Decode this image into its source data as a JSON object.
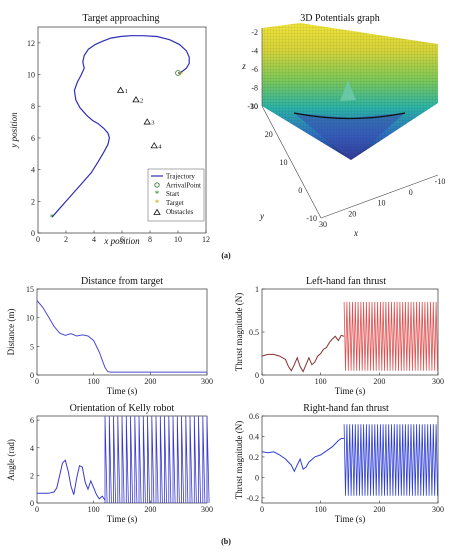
{
  "colors": {
    "trajectory": "#2e2eb8",
    "left_thrust": "#e05050",
    "left_thrust_early": "#8b3030",
    "right_thrust": "#2e3ed6",
    "distance": "#4a4ad8",
    "orientation": "#3a3ad0"
  },
  "panel_labels": {
    "a": "(a)",
    "b": "(b)"
  },
  "chart_data": [
    {
      "id": "target-approaching",
      "type": "line",
      "title": "Target approaching",
      "xlabel": "x position",
      "ylabel": "y position",
      "xlim": [
        0,
        12
      ],
      "ylim": [
        0,
        13
      ],
      "xticks": [
        0,
        2,
        4,
        6,
        8,
        10,
        12
      ],
      "yticks": [
        0,
        2,
        4,
        6,
        8,
        10,
        12
      ],
      "series": [
        {
          "name": "Trajectory",
          "x": [
            1.0,
            1.5,
            2.2,
            3.0,
            3.8,
            4.3,
            4.7,
            5.0,
            5.1,
            5.0,
            4.7,
            4.3,
            3.9,
            3.5,
            3.0,
            2.7,
            2.6,
            2.8,
            3.1,
            3.3,
            3.2,
            3.3,
            3.6,
            4.1,
            4.6,
            5.2,
            5.9,
            6.6,
            7.5,
            8.5,
            9.4,
            10.1,
            10.6,
            10.8,
            10.8,
            10.6,
            10.3,
            10.1,
            10.0,
            10.1,
            10.2
          ],
          "y": [
            1.0,
            1.5,
            2.2,
            3.0,
            3.8,
            4.5,
            5.1,
            5.6,
            6.0,
            6.3,
            6.6,
            6.9,
            7.1,
            7.4,
            7.9,
            8.4,
            9.0,
            9.5,
            10.0,
            10.4,
            10.8,
            11.2,
            11.6,
            11.9,
            12.1,
            12.3,
            12.4,
            12.45,
            12.45,
            12.4,
            12.2,
            11.9,
            11.5,
            11.1,
            10.7,
            10.4,
            10.2,
            10.1,
            10.1,
            10.1,
            10.1
          ]
        }
      ],
      "markers": {
        "arrival_point": [
          10.0,
          10.1
        ],
        "start": [
          1.0,
          1.0
        ],
        "target": [
          10.2,
          10.0
        ],
        "obstacles": [
          {
            "label": "1",
            "x": 5.9,
            "y": 9.0
          },
          {
            "label": "2",
            "x": 7.0,
            "y": 8.4
          },
          {
            "label": "3",
            "x": 7.8,
            "y": 7.0
          },
          {
            "label": "4",
            "x": 8.3,
            "y": 5.5
          }
        ]
      },
      "legend": {
        "placement": "bottom-right",
        "entries": [
          "Trajectory",
          "ArrivalPoint",
          "Start",
          "Target",
          "Obstacles"
        ]
      }
    },
    {
      "id": "potentials-3d",
      "type": "surface",
      "title": "3D Potentials graph",
      "xlabel": "x",
      "ylabel": "y",
      "zlabel": "z",
      "zticks": [
        -10,
        -8,
        -6,
        -4,
        -2
      ],
      "xticks": [
        -10,
        0,
        10,
        20,
        30
      ],
      "yticks": [
        -10,
        0,
        10,
        20,
        30
      ]
    },
    {
      "id": "distance-from-target",
      "type": "line",
      "title": "Distance from target",
      "xlabel": "Time (s)",
      "ylabel": "Distance (m)",
      "xlim": [
        0,
        300
      ],
      "ylim": [
        0,
        15
      ],
      "xticks": [
        0,
        100,
        200,
        300
      ],
      "yticks": [
        0,
        5,
        10,
        15
      ],
      "x": [
        0,
        10,
        20,
        30,
        40,
        50,
        60,
        70,
        80,
        90,
        100,
        110,
        115,
        120,
        125,
        130,
        140,
        200,
        250,
        300
      ],
      "y": [
        13.0,
        11.8,
        10.2,
        8.5,
        7.3,
        6.9,
        7.2,
        6.8,
        7.0,
        6.8,
        6.0,
        4.0,
        2.6,
        1.3,
        0.6,
        0.5,
        0.5,
        0.5,
        0.5,
        0.5
      ]
    },
    {
      "id": "left-fan-thrust",
      "type": "line",
      "title": "Left-hand fan thrust",
      "xlabel": "Time (s)",
      "ylabel": "Thrust magnitude (N)",
      "xlim": [
        0,
        300
      ],
      "ylim": [
        0,
        1
      ],
      "xticks": [
        0,
        100,
        200,
        300
      ],
      "yticks": [
        0,
        0.5,
        1
      ],
      "early_x": [
        0,
        10,
        20,
        30,
        40,
        45,
        50,
        55,
        60,
        65,
        70,
        75,
        80,
        85,
        90,
        95,
        100,
        105,
        110,
        115,
        120,
        125,
        130,
        135,
        140
      ],
      "early_y": [
        0.22,
        0.24,
        0.24,
        0.22,
        0.18,
        0.1,
        0.05,
        0.12,
        0.2,
        0.1,
        0.04,
        0.12,
        0.2,
        0.12,
        0.15,
        0.22,
        0.25,
        0.3,
        0.32,
        0.38,
        0.42,
        0.45,
        0.4,
        0.46,
        0.45
      ],
      "oscillation": {
        "start": 140,
        "end": 300,
        "period": 9.5,
        "max": 0.85,
        "min": 0.05
      }
    },
    {
      "id": "kelly-orientation",
      "type": "line",
      "title": "Orientation of Kelly robot",
      "xlabel": "Time (s)",
      "ylabel": "Angle (rad)",
      "xlim": [
        0,
        300
      ],
      "ylim": [
        0,
        6.3
      ],
      "xticks": [
        0,
        100,
        200,
        300
      ],
      "yticks": [
        0,
        2,
        4,
        6
      ],
      "early_x": [
        0,
        10,
        20,
        30,
        35,
        40,
        45,
        50,
        55,
        60,
        65,
        70,
        75,
        80,
        85,
        90,
        95,
        100,
        105,
        110,
        115,
        120
      ],
      "early_y": [
        0.7,
        0.7,
        0.7,
        0.8,
        1.1,
        2.0,
        2.9,
        3.1,
        2.3,
        1.2,
        0.6,
        1.8,
        2.7,
        2.6,
        1.5,
        1.0,
        1.6,
        1.1,
        0.6,
        0.3,
        0.5,
        0.2
      ],
      "oscillation": {
        "start": 120,
        "end": 300,
        "period": 7.5,
        "max": 6.28,
        "min": 0.0
      }
    },
    {
      "id": "right-fan-thrust",
      "type": "line",
      "title": "Right-hand fan thrust",
      "xlabel": "Time (s)",
      "ylabel": "Thrust magnitude (N)",
      "xlim": [
        0,
        300
      ],
      "ylim": [
        -0.25,
        0.6
      ],
      "xticks": [
        0,
        100,
        200,
        300
      ],
      "yticks": [
        -0.2,
        0,
        0.2,
        0.4,
        0.6
      ],
      "early_x": [
        0,
        10,
        20,
        30,
        40,
        50,
        55,
        60,
        65,
        70,
        75,
        80,
        90,
        100,
        110,
        120,
        130,
        135,
        140
      ],
      "early_y": [
        0.25,
        0.24,
        0.25,
        0.22,
        0.18,
        0.12,
        0.06,
        0.12,
        0.18,
        0.08,
        0.1,
        0.15,
        0.2,
        0.22,
        0.26,
        0.3,
        0.36,
        0.38,
        0.38
      ],
      "oscillation": {
        "start": 140,
        "end": 300,
        "period": 9.5,
        "max": 0.52,
        "min": -0.18
      }
    }
  ]
}
